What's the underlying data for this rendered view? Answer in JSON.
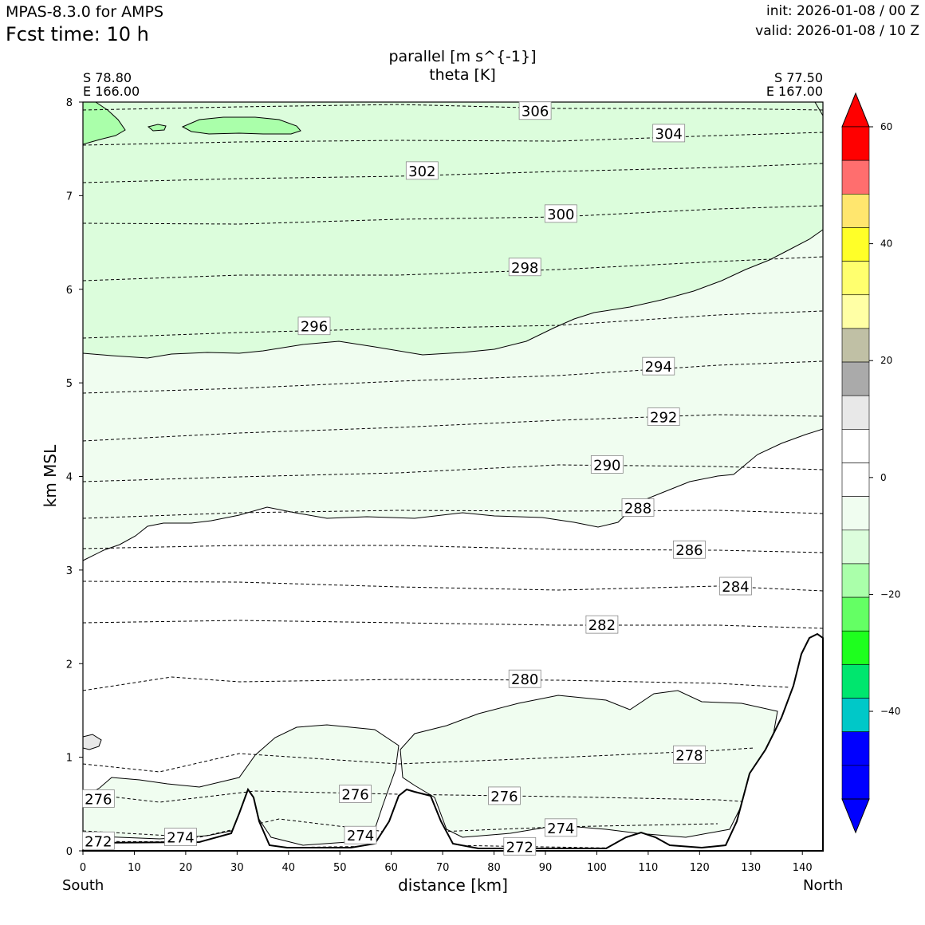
{
  "header": {
    "model": "MPAS-8.3.0 for AMPS",
    "fcst_time": "Fcst time:   10 h",
    "init": "init: 2026-01-08 / 00 Z",
    "valid": "valid: 2026-01-08 / 10 Z"
  },
  "endpoints": {
    "left_lat": "S 78.80",
    "left_lon": "E 166.00",
    "right_lat": "S 77.50",
    "right_lon": "E 167.00",
    "left_dir": "South",
    "right_dir": "North"
  },
  "chart_data": {
    "type": "contour-cross-section",
    "title": "parallel [m s^{-1}]",
    "subtitle": "theta [K]",
    "xlabel": "distance [km]",
    "ylabel": "km MSL",
    "xlim": [
      0,
      144
    ],
    "ylim": [
      0,
      8
    ],
    "x_ticks": [
      0,
      10,
      20,
      30,
      40,
      50,
      60,
      70,
      80,
      90,
      100,
      110,
      120,
      130,
      140
    ],
    "y_ticks": [
      0,
      1,
      2,
      3,
      4,
      5,
      6,
      7,
      8
    ],
    "theta_contours": [
      {
        "label": "306",
        "km": 88,
        "z": 7.9
      },
      {
        "label": "304",
        "km": 114,
        "z": 7.66
      },
      {
        "label": "302",
        "km": 66,
        "z": 7.26
      },
      {
        "label": "300",
        "km": 93,
        "z": 6.8
      },
      {
        "label": "298",
        "km": 86,
        "z": 6.23
      },
      {
        "label": "296",
        "km": 45,
        "z": 5.6
      },
      {
        "label": "294",
        "km": 112,
        "z": 5.17
      },
      {
        "label": "292",
        "km": 113,
        "z": 4.63
      },
      {
        "label": "290",
        "km": 102,
        "z": 4.12
      },
      {
        "label": "288",
        "km": 108,
        "z": 3.66
      },
      {
        "label": "286",
        "km": 118,
        "z": 3.21
      },
      {
        "label": "284",
        "km": 127,
        "z": 2.82
      },
      {
        "label": "282",
        "km": 101,
        "z": 2.41
      },
      {
        "label": "280",
        "km": 86,
        "z": 1.83
      },
      {
        "label": "278",
        "km": 118,
        "z": 1.02
      },
      {
        "label": "276",
        "km": 3,
        "z": 0.55
      },
      {
        "label": "276",
        "km": 53,
        "z": 0.6
      },
      {
        "label": "276",
        "km": 82,
        "z": 0.58
      },
      {
        "label": "274",
        "km": 93,
        "z": 0.24
      },
      {
        "label": "274",
        "km": 54,
        "z": 0.16
      },
      {
        "label": "274",
        "km": 19,
        "z": 0.14
      },
      {
        "label": "272",
        "km": 3,
        "z": 0.1
      },
      {
        "label": "272",
        "km": 85,
        "z": 0.04
      }
    ],
    "colorbar": {
      "ticks": [
        "60",
        "40",
        "20",
        "0",
        "−20",
        "−40"
      ],
      "tick_values": [
        60,
        40,
        20,
        0,
        -20,
        -40
      ],
      "range": [
        -55,
        60
      ],
      "colors": [
        "#ff0000",
        "#ff6e6e",
        "#ffe66e",
        "#ffff28",
        "#ffff6e",
        "#ffffa5",
        "#c0c0a5",
        "#aaaaaa",
        "#e8e8e8",
        "#ffffff",
        "#ffffff",
        "#f0fdf0",
        "#dcfddc",
        "#aaffaa",
        "#64ff64",
        "#1eff1e",
        "#00e66e",
        "#00c8c8",
        "#0000ff",
        "#0000ff"
      ]
    }
  }
}
